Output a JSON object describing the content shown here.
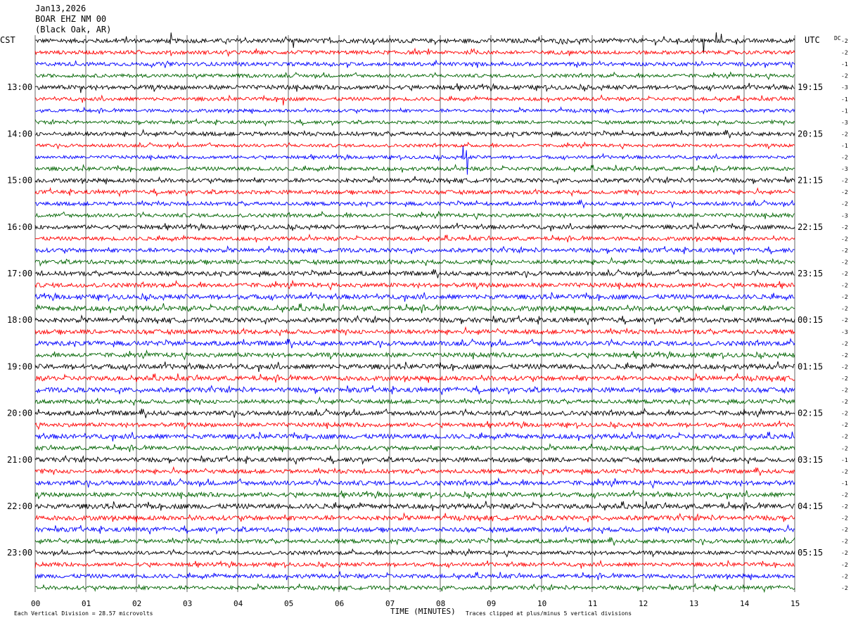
{
  "header": {
    "date": "Jan13,2026",
    "station": "BOAR EHZ NM 00",
    "location": "(Black Oak, AR)"
  },
  "axis": {
    "left_tz": "CST",
    "right_tz": "UTC",
    "dc_label": "DC",
    "xlabel": "TIME (MINUTES)"
  },
  "footer": {
    "scale_note": "Each Vertical Division =   28.57 microvolts",
    "clip_note": "Traces clipped at plus/minus 5 vertical divisions"
  },
  "colors": {
    "trace_cycle": [
      "#000000",
      "#ff0000",
      "#0000ff",
      "#006400"
    ],
    "grid": "#000000",
    "background": "#ffffff"
  },
  "chart_data": {
    "type": "line",
    "title": "BOAR EHZ NM 00",
    "x_ticks": [
      "00",
      "01",
      "02",
      "03",
      "04",
      "05",
      "06",
      "07",
      "08",
      "09",
      "10",
      "11",
      "12",
      "13",
      "14",
      "15"
    ],
    "xlim": [
      0,
      15
    ],
    "trace_count": 48,
    "minutes_per_trace": 15,
    "left_hour_labels": [
      {
        "row": 4,
        "text": "13:00"
      },
      {
        "row": 8,
        "text": "14:00"
      },
      {
        "row": 12,
        "text": "15:00"
      },
      {
        "row": 16,
        "text": "16:00"
      },
      {
        "row": 20,
        "text": "17:00"
      },
      {
        "row": 24,
        "text": "18:00"
      },
      {
        "row": 28,
        "text": "19:00"
      },
      {
        "row": 32,
        "text": "20:00"
      },
      {
        "row": 36,
        "text": "21:00"
      },
      {
        "row": 40,
        "text": "22:00"
      },
      {
        "row": 44,
        "text": "23:00"
      }
    ],
    "right_hour_labels": [
      {
        "row": 4,
        "text": "19:15"
      },
      {
        "row": 8,
        "text": "20:15"
      },
      {
        "row": 12,
        "text": "21:15"
      },
      {
        "row": 16,
        "text": "22:15"
      },
      {
        "row": 20,
        "text": "23:15"
      },
      {
        "row": 24,
        "text": "00:15"
      },
      {
        "row": 28,
        "text": "01:15"
      },
      {
        "row": 32,
        "text": "02:15"
      },
      {
        "row": 36,
        "text": "03:15"
      },
      {
        "row": 40,
        "text": "04:15"
      },
      {
        "row": 44,
        "text": "05:15"
      }
    ],
    "dc_offsets": [
      "-2",
      "-2",
      "-1",
      "-2",
      "-3",
      "-1",
      "-1",
      "-3",
      "-2",
      "-1",
      "-2",
      "-3",
      "-2",
      "-2",
      "-2",
      "-3",
      "-2",
      "-2",
      "-2",
      "-2",
      "-2",
      "-2",
      "-2",
      "-2",
      "-2",
      "-3",
      "-2",
      "-2",
      "-2",
      "-2",
      "-2",
      "-2",
      "-2",
      "-2",
      "-2",
      "-2",
      "-1",
      "-2",
      "-1",
      "-2",
      "-2",
      "-2",
      "-2",
      "-2",
      "-2",
      "-2",
      "-2",
      "-2"
    ],
    "trace_noise_level": [
      3.0,
      2.6,
      2.6,
      2.4,
      3.0,
      2.4,
      2.2,
      2.2,
      2.8,
      2.2,
      2.2,
      2.6,
      2.8,
      2.6,
      2.6,
      2.6,
      2.8,
      2.6,
      2.8,
      2.8,
      3.0,
      3.0,
      3.2,
      3.4,
      3.2,
      3.0,
      3.2,
      3.0,
      3.4,
      3.2,
      3.2,
      2.8,
      3.2,
      2.8,
      3.2,
      2.8,
      3.0,
      2.8,
      3.2,
      3.0,
      3.4,
      3.2,
      3.0,
      2.8,
      2.6,
      2.6,
      2.8,
      2.6
    ],
    "spikes": [
      {
        "trace": 0,
        "minute": 2.68,
        "amp": 14
      },
      {
        "trace": 0,
        "minute": 5.1,
        "amp": 10
      },
      {
        "trace": 0,
        "minute": 13.2,
        "amp": 18
      },
      {
        "trace": 0,
        "minute": 13.45,
        "amp": 12
      },
      {
        "trace": 0,
        "minute": 13.55,
        "amp": 10
      },
      {
        "trace": 4,
        "minute": 0.9,
        "amp": 8
      },
      {
        "trace": 5,
        "minute": 4.9,
        "amp": 9
      },
      {
        "trace": 10,
        "minute": 8.53,
        "amp": 30
      },
      {
        "trace": 10,
        "minute": 8.45,
        "amp": 16
      }
    ]
  }
}
